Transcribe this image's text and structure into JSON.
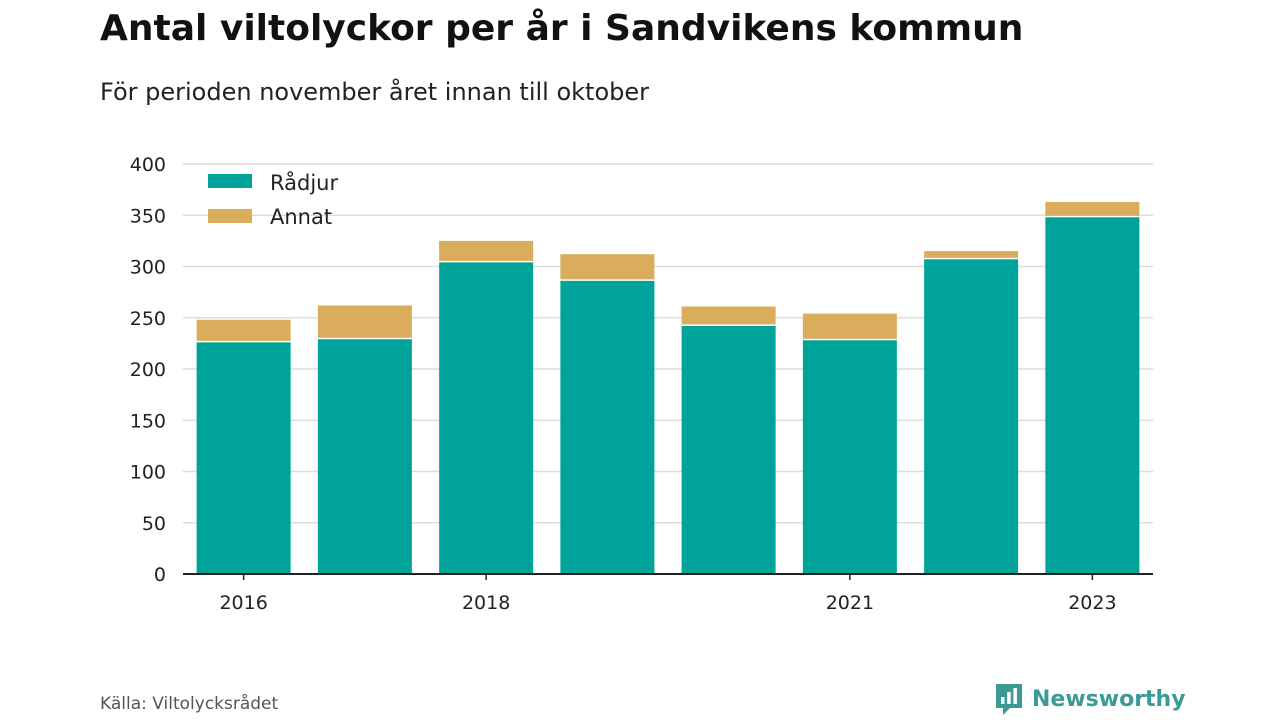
{
  "header": {
    "title": "Antal viltolyckor per år i Sandvikens kommun",
    "subtitle": "För perioden november året innan till oktober"
  },
  "footer": {
    "source": "Källa: Viltolycksrådet",
    "brand_name": "Newsworthy",
    "brand_icon": "newsworthy-logo-icon"
  },
  "colors": {
    "radjur": "#00a39a",
    "annat": "#d9ad5b",
    "grid": "#dcdcdc",
    "axis": "#222222",
    "brand": "#3a9a96"
  },
  "chart_data": {
    "type": "bar",
    "stacked": true,
    "categories": [
      "2016",
      "2017",
      "2018",
      "2019",
      "2020",
      "2021",
      "2022",
      "2023"
    ],
    "x_tick_labels": [
      "2016",
      "",
      "2018",
      "",
      "",
      "2021",
      "",
      "2023"
    ],
    "series": [
      {
        "name": "Rådjur",
        "values": [
          226,
          229,
          304,
          286,
          242,
          228,
          307,
          348
        ]
      },
      {
        "name": "Annat",
        "values": [
          22,
          33,
          21,
          26,
          19,
          26,
          8,
          15
        ]
      }
    ],
    "y_ticks": [
      0,
      50,
      100,
      150,
      200,
      250,
      300,
      350,
      400
    ],
    "ylim": [
      0,
      400
    ],
    "grid": true,
    "legend_position": "top-left"
  }
}
